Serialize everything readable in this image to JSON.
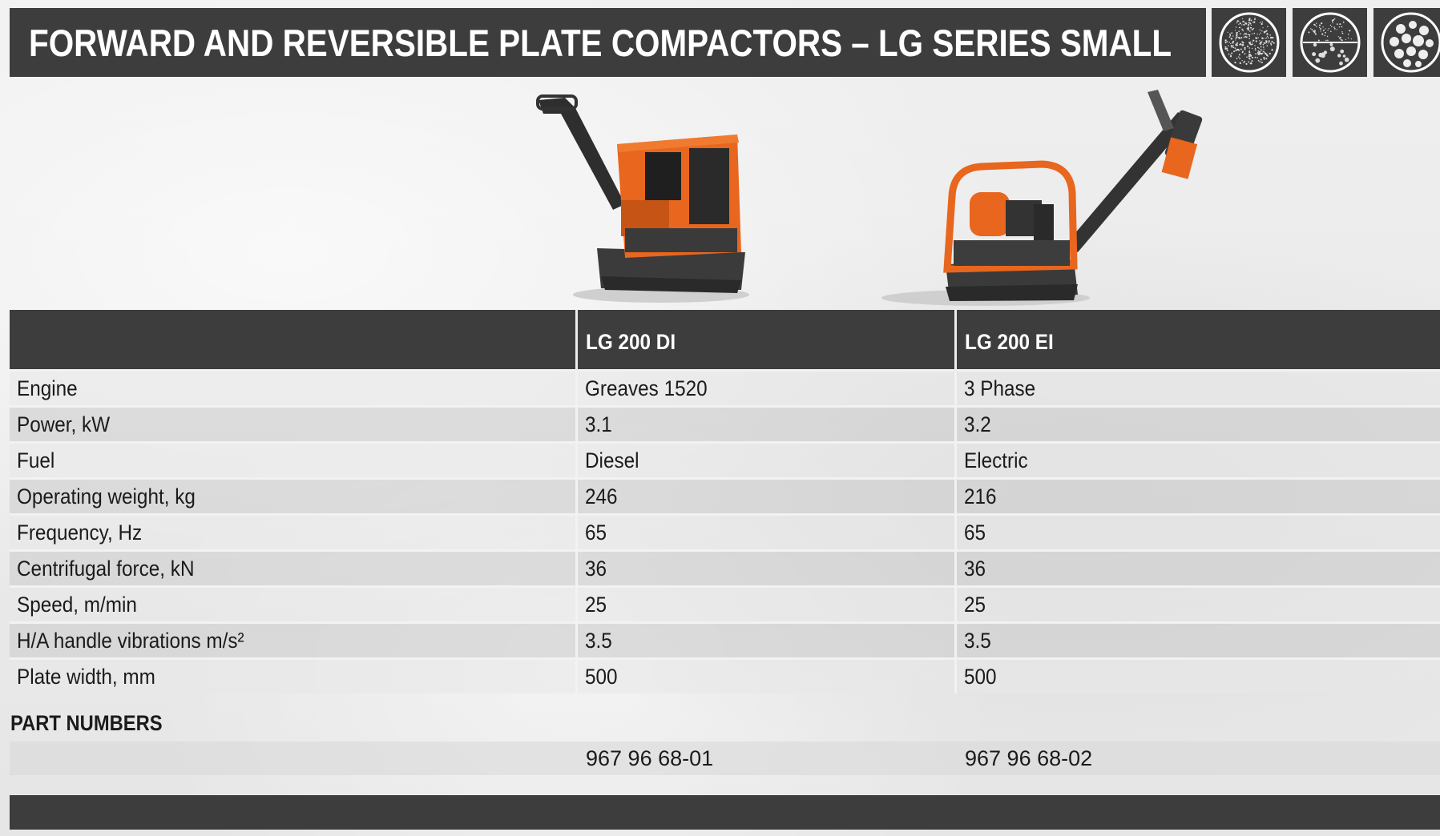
{
  "title": "FORWARD AND REVERSIBLE PLATE COMPACTORS – LG SERIES SMALL",
  "soil_icons": [
    "fine-soil-icon",
    "mixed-soil-icon",
    "coarse-soil-icon"
  ],
  "spec_table": {
    "headers": [
      "",
      "LG 200 DI",
      "LG 200 EI"
    ],
    "rows": [
      [
        "Engine",
        "Greaves 1520",
        "3 Phase"
      ],
      [
        "Power, kW",
        "3.1",
        "3.2"
      ],
      [
        "Fuel",
        "Diesel",
        "Electric"
      ],
      [
        "Operating weight, kg",
        "246",
        "216"
      ],
      [
        "Frequency, Hz",
        "65",
        "65"
      ],
      [
        "Centrifugal force, kN",
        "36",
        "36"
      ],
      [
        "Speed, m/min",
        "25",
        "25"
      ],
      [
        "H/A handle vibrations m/s²",
        "3.5",
        "3.5"
      ],
      [
        "Plate width, mm",
        "500",
        "500"
      ]
    ]
  },
  "part_numbers": {
    "heading": "PART NUMBERS",
    "values": [
      "967 96 68-01",
      "967 96 68-02"
    ]
  },
  "colors": {
    "header_bg": "#3d3d3d",
    "machine_orange": "#e8661e",
    "machine_dark": "#3a3a3a"
  }
}
